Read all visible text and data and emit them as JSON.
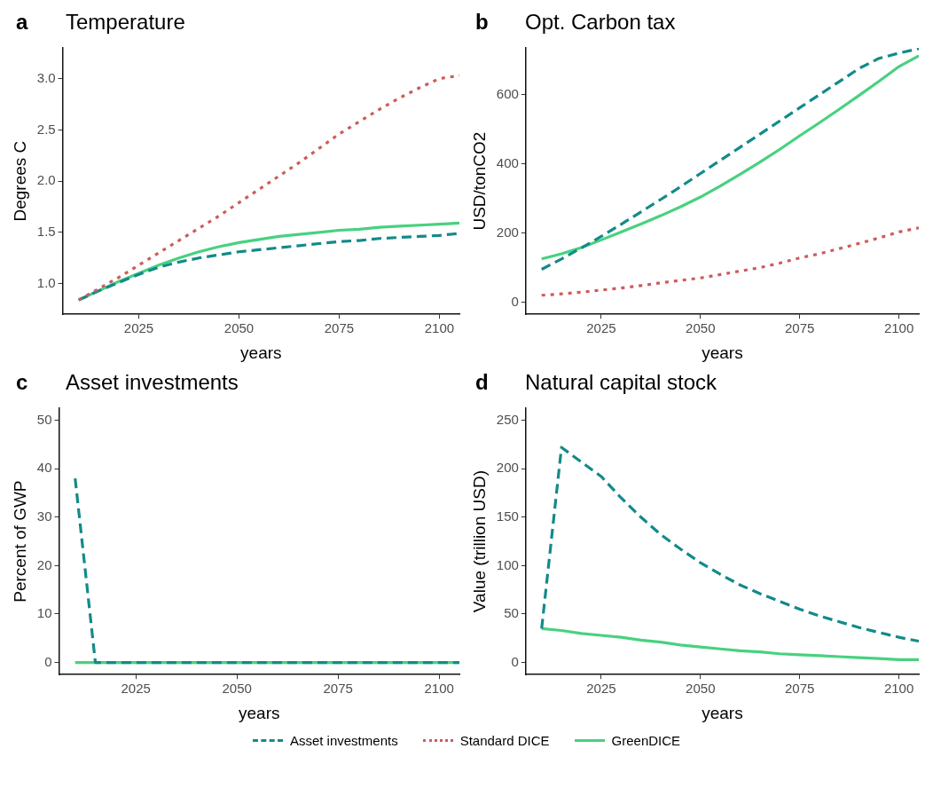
{
  "chart_data": [
    {
      "type": "line",
      "title": "Temperature",
      "annotations": [
        "a"
      ],
      "xlabel": "years",
      "ylabel": "Degrees C",
      "xlim": [
        2006,
        2105
      ],
      "xticks": [
        2025,
        2050,
        2075,
        2100
      ],
      "ylim": [
        0.7,
        3.3
      ],
      "yticks": [
        {
          "value": 1,
          "label": "1.0"
        },
        1.5,
        {
          "value": 2,
          "label": "2.0"
        },
        2.5,
        {
          "value": 3,
          "label": "3.0"
        }
      ],
      "grid": false,
      "legend": "bottom",
      "x": [
        2010,
        2015,
        2020,
        2025,
        2030,
        2035,
        2040,
        2045,
        2050,
        2055,
        2060,
        2065,
        2070,
        2075,
        2080,
        2085,
        2090,
        2095,
        2100,
        2105
      ],
      "series": [
        {
          "name": "Asset investments",
          "color": "#138a8a",
          "line_style": "dashed",
          "values": [
            0.84,
            0.93,
            1.01,
            1.09,
            1.16,
            1.21,
            1.25,
            1.28,
            1.31,
            1.33,
            1.35,
            1.37,
            1.39,
            1.41,
            1.42,
            1.44,
            1.45,
            1.46,
            1.47,
            1.49
          ]
        },
        {
          "name": "Standard DICE",
          "color": "#cd5c5c",
          "line_style": "dotted",
          "values": [
            0.84,
            0.95,
            1.06,
            1.18,
            1.3,
            1.42,
            1.54,
            1.66,
            1.79,
            1.92,
            2.05,
            2.18,
            2.32,
            2.46,
            2.58,
            2.7,
            2.81,
            2.91,
            3.0,
            3.03
          ]
        },
        {
          "name": "GreenDICE",
          "color": "#48d17f",
          "line_style": "solid",
          "values": [
            0.84,
            0.93,
            1.02,
            1.1,
            1.18,
            1.25,
            1.31,
            1.36,
            1.4,
            1.43,
            1.46,
            1.48,
            1.5,
            1.52,
            1.53,
            1.55,
            1.56,
            1.57,
            1.58,
            1.59
          ]
        }
      ]
    },
    {
      "type": "line",
      "title": "Opt. Carbon tax",
      "annotations": [
        "b"
      ],
      "xlabel": "years",
      "ylabel": "USD/tonCO2",
      "xlim": [
        2006,
        2105
      ],
      "xticks": [
        2025,
        2050,
        2075,
        2100
      ],
      "ylim": [
        -35,
        735
      ],
      "yticks": [
        0,
        200,
        400,
        600
      ],
      "grid": false,
      "x": [
        2010,
        2015,
        2020,
        2025,
        2030,
        2035,
        2040,
        2045,
        2050,
        2055,
        2060,
        2065,
        2070,
        2075,
        2080,
        2085,
        2090,
        2095,
        2100,
        2105
      ],
      "series": [
        {
          "color": "#138a8a",
          "line_style": "dashed",
          "values": [
            95,
            125,
            157,
            190,
            225,
            261,
            297,
            334,
            372,
            410,
            448,
            486,
            524,
            562,
            600,
            638,
            676,
            705,
            720,
            733
          ]
        },
        {
          "color": "#cd5c5c",
          "line_style": "dotted",
          "values": [
            20,
            24,
            29,
            35,
            41,
            48,
            56,
            63,
            70,
            80,
            90,
            100,
            113,
            128,
            140,
            155,
            170,
            186,
            203,
            215
          ]
        },
        {
          "color": "#48d17f",
          "line_style": "solid",
          "values": [
            125,
            140,
            158,
            180,
            203,
            226,
            250,
            276,
            304,
            336,
            370,
            405,
            442,
            481,
            519,
            558,
            598,
            639,
            681,
            712
          ]
        }
      ]
    },
    {
      "type": "line",
      "title": "Asset investments",
      "annotations": [
        "c"
      ],
      "xlabel": "years",
      "ylabel": "Percent of GWP",
      "xlim": [
        2006,
        2105
      ],
      "xticks": [
        2025,
        2050,
        2075,
        2100
      ],
      "ylim": [
        -2.5,
        52.5
      ],
      "yticks": [
        0,
        10,
        20,
        30,
        40,
        50
      ],
      "grid": false,
      "x": [
        2010,
        2015,
        2020,
        2025,
        2030,
        2035,
        2040,
        2045,
        2050,
        2055,
        2060,
        2065,
        2070,
        2075,
        2080,
        2085,
        2090,
        2095,
        2100,
        2105
      ],
      "series": [
        {
          "color": "#138a8a",
          "line_style": "dashed",
          "values": [
            38,
            0,
            0,
            0,
            0,
            0,
            0,
            0,
            0,
            0,
            0,
            0,
            0,
            0,
            0,
            0,
            0,
            0,
            0,
            0
          ]
        },
        {
          "color": "#48d17f",
          "line_style": "solid",
          "values": [
            0,
            0,
            0,
            0,
            0,
            0,
            0,
            0,
            0,
            0,
            0,
            0,
            0,
            0,
            0,
            0,
            0,
            0,
            0,
            0
          ]
        }
      ]
    },
    {
      "type": "line",
      "title": "Natural capital stock",
      "annotations": [
        "d"
      ],
      "xlabel": "years",
      "ylabel": "Value (trillion USD)",
      "xlim": [
        2006,
        2105
      ],
      "xticks": [
        2025,
        2050,
        2075,
        2100
      ],
      "ylim": [
        -12.5,
        262.5
      ],
      "yticks": [
        0,
        50,
        100,
        150,
        200,
        250
      ],
      "grid": false,
      "x": [
        2010,
        2015,
        2020,
        2025,
        2030,
        2035,
        2040,
        2045,
        2050,
        2055,
        2060,
        2065,
        2070,
        2075,
        2080,
        2085,
        2090,
        2095,
        2100,
        2105
      ],
      "series": [
        {
          "color": "#138a8a",
          "line_style": "dashed",
          "values": [
            35,
            222,
            207,
            192,
            170,
            150,
            132,
            117,
            103,
            91,
            80,
            71,
            63,
            55,
            48,
            42,
            36,
            31,
            26,
            22
          ]
        },
        {
          "color": "#48d17f",
          "line_style": "solid",
          "values": [
            35,
            33,
            30,
            28,
            26,
            23,
            21,
            18,
            16,
            14,
            12,
            11,
            9,
            8,
            7,
            6,
            5,
            4,
            3,
            3
          ]
        }
      ]
    }
  ]
}
